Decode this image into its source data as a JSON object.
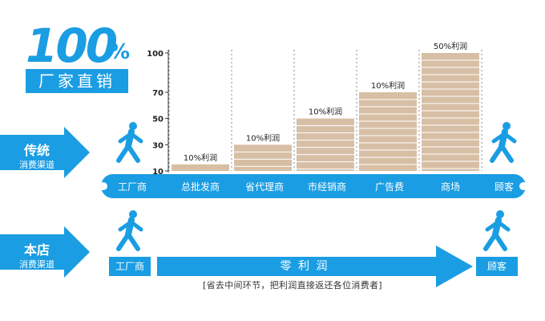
{
  "headline": {
    "big": "100",
    "pct": "%",
    "banner": "厂家直销"
  },
  "traditional": {
    "title": "传统",
    "subtitle": "消费渠道"
  },
  "store": {
    "title": "本店",
    "subtitle": "消费渠道"
  },
  "channel_labels": [
    "工厂商",
    "总批发商",
    "省代理商",
    "市经销商",
    "广告费",
    "商场",
    "顾客"
  ],
  "bottom": {
    "factory": "工厂商",
    "customer": "顾客",
    "arrow_label": "零 利 润",
    "note": "[省去中间环节，把利润直接返还各位消费者]"
  },
  "colors": {
    "accent": "#1a9de2",
    "bar": "#d7bfa5",
    "bar_stripe": "#ffffff"
  },
  "chart_data": {
    "type": "bar",
    "categories": [
      "总批发商",
      "省代理商",
      "市经销商",
      "广告费",
      "商场"
    ],
    "values": [
      15,
      30,
      50,
      70,
      100
    ],
    "bar_labels": [
      "10%利润",
      "10%利润",
      "10%利润",
      "10%利润",
      "50%利润"
    ],
    "yticks": [
      10,
      30,
      50,
      70,
      100
    ],
    "ylim": [
      10,
      100
    ],
    "xlabel": "",
    "ylabel": ""
  }
}
